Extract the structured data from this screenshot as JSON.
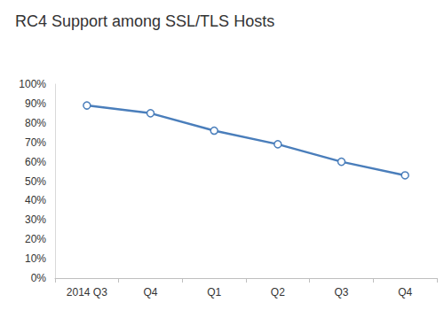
{
  "chart_data": {
    "type": "line",
    "title": "RC4 Support among SSL/TLS Hosts",
    "categories": [
      "2014 Q3",
      "Q4",
      "Q1",
      "Q2",
      "Q3",
      "Q4"
    ],
    "values": [
      89,
      85,
      76,
      69,
      60,
      53
    ],
    "color": "#4a7ebb",
    "marker": "circle",
    "ylim": [
      0,
      100
    ],
    "yticks": [
      {
        "value": 0,
        "label": "0%"
      },
      {
        "value": 10,
        "label": "10%"
      },
      {
        "value": 20,
        "label": "20%"
      },
      {
        "value": 30,
        "label": "30%"
      },
      {
        "value": 40,
        "label": "40%"
      },
      {
        "value": 50,
        "label": "50%"
      },
      {
        "value": 60,
        "label": "60%"
      },
      {
        "value": 70,
        "label": "70%"
      },
      {
        "value": 80,
        "label": "80%"
      },
      {
        "value": 90,
        "label": "90%"
      },
      {
        "value": 100,
        "label": "100%"
      }
    ],
    "grid": false
  }
}
